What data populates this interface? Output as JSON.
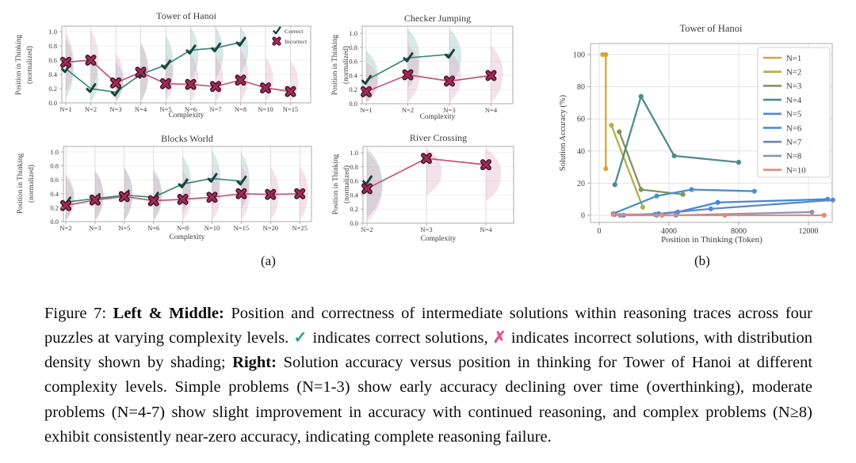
{
  "figure": {
    "panel_a_label": "(a)",
    "panel_b_label": "(b)",
    "colors": {
      "correct_line": "#3F8878",
      "correct_marker": "#17453E",
      "incorrect_line": "#C25576",
      "incorrect_marker": "#9E2C52",
      "incorrect_marker_edge": "#40122A",
      "violin_correct": "#7FB3A8",
      "violin_incorrect": "#DB9FB8",
      "grid": "#E3E3E3",
      "spine": "#ABABAB",
      "text": "#3A3A3A"
    }
  },
  "chart_data": [
    {
      "id": "tower-of-hanoi-position",
      "type": "line",
      "title": "Tower of Hanoi",
      "xlabel": "Complexity",
      "ylabel_line1": "Position in Thinking",
      "ylabel_line2": "(normalized)",
      "categories": [
        "N=1",
        "N=2",
        "N=3",
        "N=4",
        "N=5",
        "N=6",
        "N=7",
        "N=8",
        "N=10",
        "N=15"
      ],
      "yticks": [
        "0.0",
        "0.2",
        "0.4",
        "0.6",
        "0.8",
        "1.0"
      ],
      "ylim": [
        0,
        1.08
      ],
      "density_shading": true,
      "legend": [
        "Correct",
        "Incorrect"
      ],
      "series": [
        {
          "name": "Correct",
          "values": [
            0.48,
            0.2,
            0.15,
            0.4,
            0.53,
            0.74,
            0.77,
            0.85,
            null,
            null
          ]
        },
        {
          "name": "Incorrect",
          "values": [
            0.57,
            0.6,
            0.28,
            0.43,
            0.27,
            0.26,
            0.23,
            0.32,
            0.21,
            0.16
          ]
        }
      ]
    },
    {
      "id": "checker-jumping-position",
      "type": "line",
      "title": "Checker Jumping",
      "xlabel": "Complexity",
      "ylabel_line1": "Position in Thinking",
      "ylabel_line2": "(normalized)",
      "categories": [
        "N=1",
        "N=2",
        "N=3",
        "N=4"
      ],
      "yticks": [
        "0.0",
        "0.2",
        "0.4",
        "0.6",
        "0.8",
        "1.0"
      ],
      "ylim": [
        0,
        1.08
      ],
      "density_shading": true,
      "series": [
        {
          "name": "Correct",
          "values": [
            0.33,
            0.65,
            0.7,
            null
          ]
        },
        {
          "name": "Incorrect",
          "values": [
            0.17,
            0.41,
            0.32,
            0.4
          ]
        }
      ]
    },
    {
      "id": "blocks-world-position",
      "type": "line",
      "title": "Blocks World",
      "xlabel": "Complexity",
      "ylabel_line1": "Position in Thinking",
      "ylabel_line2": "(normalized)",
      "categories": [
        "N=2",
        "N=3",
        "N=5",
        "N=6",
        "N=8",
        "N=10",
        "N=15",
        "N=20",
        "N=25"
      ],
      "yticks": [
        "0.0",
        "0.2",
        "0.4",
        "0.6",
        "0.8",
        "1.0"
      ],
      "ylim": [
        0,
        1.08
      ],
      "density_shading": true,
      "series": [
        {
          "name": "Correct",
          "values": [
            0.28,
            0.33,
            0.38,
            0.35,
            0.54,
            0.62,
            0.58,
            null,
            null
          ]
        },
        {
          "name": "Incorrect",
          "values": [
            0.23,
            0.31,
            0.36,
            0.3,
            0.32,
            0.35,
            0.4,
            0.39,
            0.4
          ]
        }
      ]
    },
    {
      "id": "river-crossing-position",
      "type": "line",
      "title": "River Crossing",
      "xlabel": "Complexity",
      "ylabel_line1": "Position in Thinking",
      "ylabel_line2": "(normalized)",
      "categories": [
        "N=2",
        "N=3",
        "N=4"
      ],
      "yticks": [
        "0.0",
        "0.2",
        "0.4",
        "0.6",
        "0.8",
        "1.0"
      ],
      "ylim": [
        0,
        1.08
      ],
      "density_shading": true,
      "series": [
        {
          "name": "Correct",
          "values": [
            0.6,
            null,
            null
          ]
        },
        {
          "name": "Incorrect",
          "values": [
            0.49,
            0.92,
            0.83
          ]
        }
      ]
    },
    {
      "id": "tower-of-hanoi-accuracy",
      "type": "line",
      "title": "Tower of Hanoi",
      "xlabel": "Position in Thinking (Token)",
      "ylabel": "Solution Accuracy (%)",
      "xticks": [
        0,
        4000,
        8000,
        12000
      ],
      "yticks": [
        0,
        20,
        40,
        60,
        80,
        100
      ],
      "xlim": [
        -500,
        13900
      ],
      "ylim": [
        -4.4,
        106
      ],
      "legend_position": "upper right",
      "series": [
        {
          "name": "N=1",
          "color": "#D2A63C",
          "points": [
            [
              200,
              100
            ],
            [
              380,
              100
            ],
            [
              380,
              29
            ]
          ]
        },
        {
          "name": "N=2",
          "color": "#B4AE47",
          "points": [
            [
              700,
              56
            ],
            [
              2500,
              5
            ]
          ]
        },
        {
          "name": "N=3",
          "color": "#82955A",
          "points": [
            [
              1150,
              52
            ],
            [
              2400,
              16
            ],
            [
              4800,
              13
            ]
          ]
        },
        {
          "name": "N=4",
          "color": "#4F8B8E",
          "points": [
            [
              900,
              19
            ],
            [
              2400,
              74
            ],
            [
              4300,
              37
            ],
            [
              8000,
              33
            ]
          ]
        },
        {
          "name": "N=5",
          "color": "#4A8FD0",
          "points": [
            [
              800,
              1
            ],
            [
              3300,
              12
            ],
            [
              5300,
              16
            ],
            [
              8900,
              15
            ]
          ]
        },
        {
          "name": "N=6",
          "color": "#3E89DA",
          "points": [
            [
              900,
              0.5
            ],
            [
              3200,
              0.5
            ],
            [
              4500,
              2
            ],
            [
              6800,
              8
            ],
            [
              13100,
              10
            ]
          ]
        },
        {
          "name": "N=7",
          "color": "#6187C6",
          "points": [
            [
              1400,
              0
            ],
            [
              3400,
              1
            ],
            [
              6400,
              4
            ],
            [
              13400,
              9.5
            ]
          ]
        },
        {
          "name": "N=8",
          "color": "#8D94B0",
          "points": [
            [
              1200,
              0
            ],
            [
              3300,
              0
            ],
            [
              4400,
              0
            ],
            [
              12200,
              2
            ]
          ]
        },
        {
          "name": "N=10",
          "color": "#E28A7C",
          "points": [
            [
              800,
              0.5
            ],
            [
              3600,
              0
            ],
            [
              7200,
              0
            ],
            [
              12900,
              0
            ]
          ]
        }
      ]
    }
  ],
  "caption": {
    "segments": [
      {
        "text": "Figure 7: "
      },
      {
        "text": "Left & Middle: ",
        "bold": true
      },
      {
        "text": "Position and correctness of intermediate solutions within reasoning traces across four puzzles at varying complexity levels. "
      },
      {
        "text": "✓",
        "color": "#2E9E8E",
        "bold": true
      },
      {
        "text": " indicates correct solutions, "
      },
      {
        "text": "✗",
        "color": "#E2559B",
        "bold": true
      },
      {
        "text": " indicates incorrect solutions, with distribution density shown by shading; "
      },
      {
        "text": "Right: ",
        "bold": true
      },
      {
        "text": "Solution accuracy versus position in thinking for Tower of Hanoi at different complexity levels. Simple problems (N=1-3) show early accuracy declining over time (overthinking), moderate problems (N=4-7) show slight improvement in accuracy with continued reasoning, and complex problems (N≥8) exhibit consistently near-zero accuracy, indicating complete reasoning failure."
      }
    ]
  }
}
